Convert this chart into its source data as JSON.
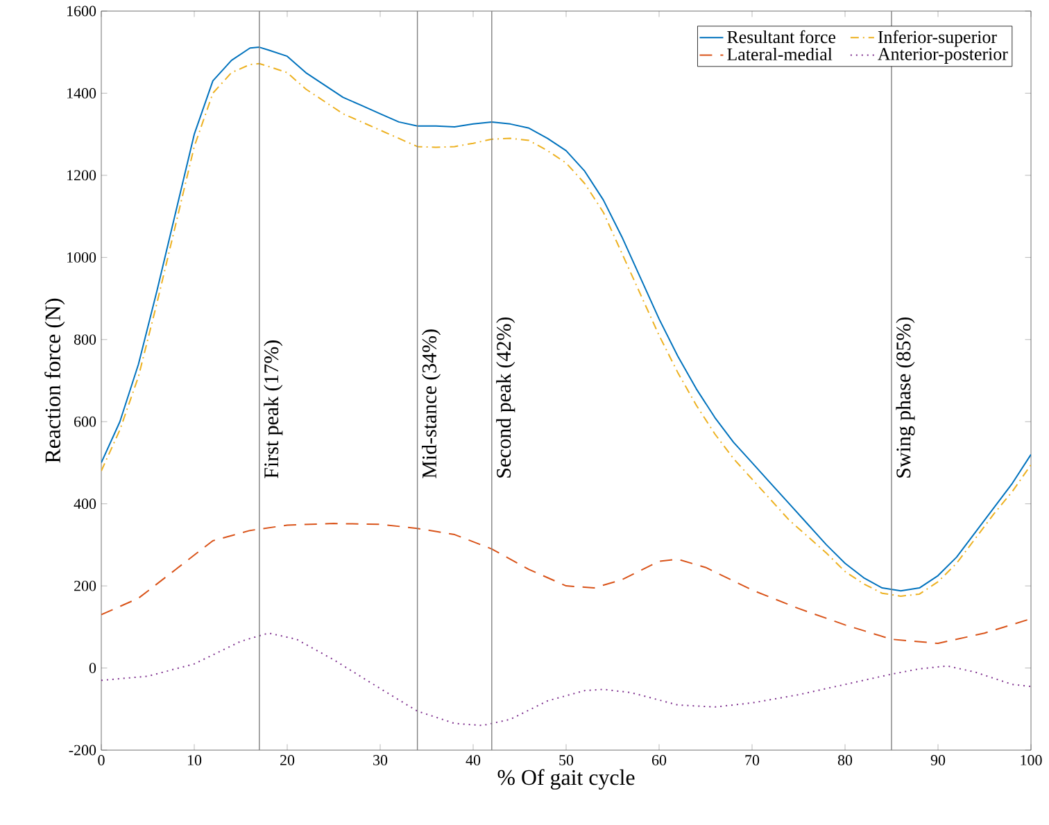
{
  "chart_data": {
    "type": "line",
    "xlabel": "% Of gait cycle",
    "ylabel": "Reaction force (N)",
    "xlim": [
      0,
      100
    ],
    "ylim": [
      -200,
      1600
    ],
    "xticks": [
      0,
      10,
      20,
      30,
      40,
      50,
      60,
      70,
      80,
      90,
      100
    ],
    "yticks": [
      -200,
      0,
      200,
      400,
      600,
      800,
      1000,
      1200,
      1400,
      1600
    ],
    "grid": false,
    "legend": "top right",
    "marker": "none",
    "x": [
      0,
      2,
      4,
      6,
      8,
      10,
      12,
      14,
      16,
      17,
      18,
      20,
      22,
      24,
      26,
      28,
      30,
      32,
      34,
      36,
      38,
      40,
      42,
      44,
      46,
      48,
      50,
      52,
      54,
      56,
      58,
      60,
      62,
      64,
      66,
      68,
      70,
      72,
      74,
      76,
      78,
      80,
      82,
      84,
      86,
      88,
      90,
      92,
      94,
      96,
      98,
      100
    ],
    "series": [
      {
        "name": "Resultant force",
        "color": "#0072bd",
        "line_style": "solid",
        "values": [
          500,
          600,
          740,
          920,
          1110,
          1300,
          1430,
          1480,
          1510,
          1512,
          1505,
          1490,
          1450,
          1420,
          1390,
          1370,
          1350,
          1330,
          1320,
          1320,
          1318,
          1325,
          1330,
          1325,
          1315,
          1290,
          1260,
          1210,
          1140,
          1050,
          950,
          850,
          760,
          680,
          610,
          550,
          500,
          450,
          400,
          350,
          300,
          255,
          220,
          195,
          188,
          195,
          225,
          270,
          330,
          390,
          450,
          520
        ]
      },
      {
        "name": "Inferior-superior",
        "color": "#edb120",
        "line_style": "dashdot",
        "values": [
          480,
          580,
          710,
          890,
          1080,
          1270,
          1400,
          1450,
          1470,
          1472,
          1465,
          1450,
          1410,
          1380,
          1350,
          1330,
          1310,
          1290,
          1270,
          1268,
          1270,
          1278,
          1288,
          1290,
          1285,
          1260,
          1230,
          1180,
          1110,
          1010,
          910,
          810,
          720,
          640,
          570,
          510,
          460,
          410,
          360,
          320,
          280,
          235,
          205,
          182,
          175,
          180,
          210,
          255,
          315,
          375,
          430,
          495
        ]
      },
      {
        "name": "Lateral-medial",
        "color": "#d95319",
        "line_style": "dashed",
        "x": [
          0,
          4,
          8,
          12,
          16,
          20,
          25,
          30,
          34,
          38,
          42,
          46,
          50,
          53,
          56,
          60,
          62,
          65,
          70,
          75,
          80,
          85,
          90,
          95,
          100
        ],
        "values": [
          130,
          170,
          240,
          310,
          335,
          348,
          352,
          350,
          340,
          325,
          290,
          240,
          200,
          195,
          215,
          260,
          265,
          245,
          190,
          145,
          105,
          70,
          60,
          85,
          120
        ]
      },
      {
        "name": "Anterior-posterior",
        "color": "#7e2f8e",
        "line_style": "dotted",
        "x": [
          0,
          5,
          10,
          15,
          18,
          21,
          25,
          30,
          34,
          38,
          41,
          44,
          48,
          52,
          54,
          57,
          62,
          66,
          70,
          75,
          80,
          85,
          88,
          91,
          94,
          98,
          100
        ],
        "values": [
          -30,
          -20,
          10,
          65,
          85,
          70,
          20,
          -50,
          -105,
          -135,
          -140,
          -125,
          -80,
          -55,
          -52,
          -60,
          -90,
          -95,
          -85,
          -65,
          -40,
          -15,
          -2,
          5,
          -10,
          -40,
          -45
        ]
      }
    ],
    "ref_lines": [
      {
        "axis": "x",
        "value": 17,
        "label": "First peak (17%)",
        "color": "#808080"
      },
      {
        "axis": "x",
        "value": 34,
        "label": "Mid-stance (34%)",
        "color": "#808080"
      },
      {
        "axis": "x",
        "value": 42,
        "label": "Second peak (42%)",
        "color": "#808080"
      },
      {
        "axis": "x",
        "value": 85,
        "label": "Swing phase (85%)",
        "color": "#808080"
      }
    ]
  }
}
